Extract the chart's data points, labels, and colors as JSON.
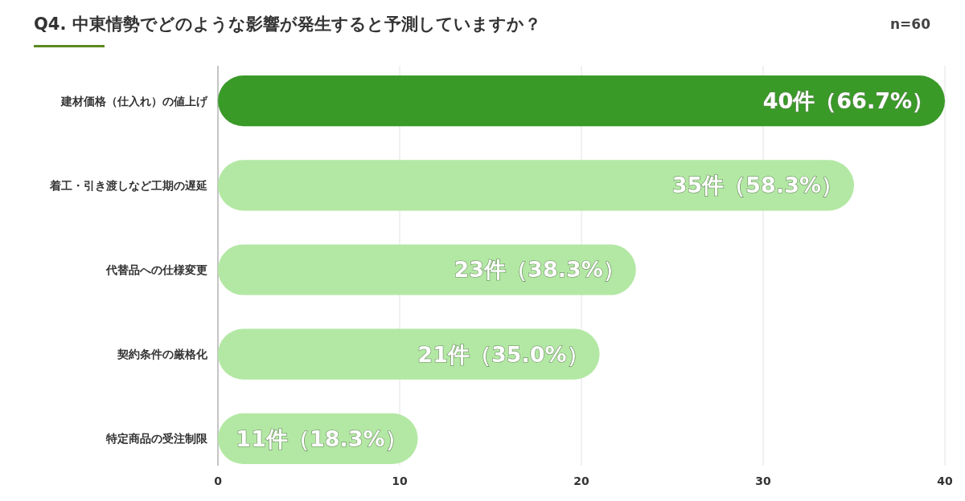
{
  "chart_data": {
    "type": "bar",
    "orientation": "horizontal",
    "title": "Q4. 中東情勢でどのような影響が発生すると予測していますか？",
    "annotations": [
      "n=60"
    ],
    "categories": [
      "建材価格（仕入れ）の値上げ",
      "着工・引き渡しなど工期の遅延",
      "代替品への仕様変更",
      "契約条件の厳格化",
      "特定商品の受注制限"
    ],
    "values": [
      40,
      35,
      23,
      21,
      11
    ],
    "colors": [
      "#3a9a28",
      "#b3e8a4",
      "#b3e8a4",
      "#b3e8a4",
      "#b3e8a4"
    ],
    "value_labels": [
      "40件（66.7%）",
      "35件（58.3%）",
      "23件（38.3%）",
      "21件（35.0%）",
      "11件（18.3%）"
    ],
    "xlim": [
      0,
      40
    ],
    "xticks": [
      0,
      10,
      20,
      30,
      40
    ],
    "grid": "x"
  }
}
